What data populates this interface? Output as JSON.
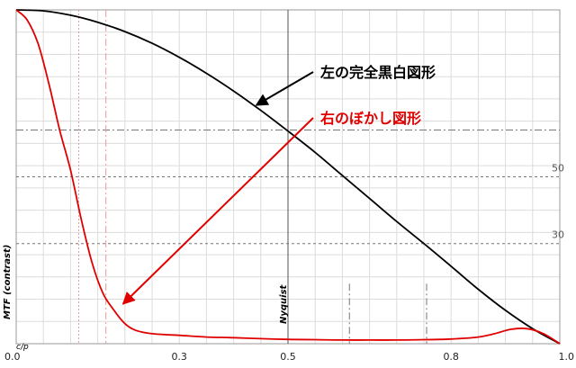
{
  "chart_data": {
    "type": "line",
    "xlim": [
      0,
      1.0
    ],
    "ylim": [
      0,
      1.0
    ],
    "x_ticks": [
      "0.0",
      "0.3",
      "0.5",
      "0.8",
      "1.0"
    ],
    "x_tick_values": [
      0.0,
      0.3,
      0.5,
      0.8,
      1.0
    ],
    "ylabel": "MTF (contrast)",
    "x_unit": "c/p",
    "nyquist": {
      "label": "Nyquist",
      "x": 0.5
    },
    "side_labels": [
      {
        "text": "50",
        "y": 0.5
      },
      {
        "text": "30",
        "y": 0.3
      }
    ],
    "grid": true,
    "series": [
      {
        "name": "左の完全黒白図形",
        "color": "#000000",
        "x": [
          0.0,
          0.05,
          0.1,
          0.15,
          0.2,
          0.25,
          0.3,
          0.35,
          0.4,
          0.45,
          0.5,
          0.55,
          0.6,
          0.65,
          0.7,
          0.75,
          0.8,
          0.85,
          0.9,
          0.95,
          1.0
        ],
        "values": [
          1.0,
          0.997,
          0.984,
          0.963,
          0.935,
          0.9,
          0.858,
          0.81,
          0.757,
          0.699,
          0.637,
          0.573,
          0.504,
          0.435,
          0.366,
          0.3,
          0.232,
          0.163,
          0.1,
          0.045,
          0.0
        ]
      },
      {
        "name": "右のぼかし図形",
        "color": "#e00000",
        "x": [
          0.0,
          0.02,
          0.04,
          0.06,
          0.08,
          0.1,
          0.12,
          0.14,
          0.16,
          0.18,
          0.2,
          0.22,
          0.25,
          0.3,
          0.35,
          0.4,
          0.45,
          0.5,
          0.55,
          0.6,
          0.65,
          0.7,
          0.75,
          0.8,
          0.85,
          0.88,
          0.91,
          0.94,
          0.97,
          1.0
        ],
        "values": [
          1.0,
          0.97,
          0.9,
          0.78,
          0.64,
          0.52,
          0.37,
          0.24,
          0.15,
          0.1,
          0.06,
          0.04,
          0.03,
          0.025,
          0.02,
          0.018,
          0.015,
          0.013,
          0.012,
          0.011,
          0.011,
          0.011,
          0.012,
          0.014,
          0.02,
          0.03,
          0.043,
          0.045,
          0.03,
          0.0
        ]
      }
    ],
    "annotations": [
      {
        "text": "左の完全黒白図形",
        "color": "#000000",
        "points_to": [
          0.435,
          0.72
        ]
      },
      {
        "text": "右のぼかし図形",
        "color": "#e00000",
        "points_to": [
          0.19,
          0.13
        ]
      }
    ]
  }
}
